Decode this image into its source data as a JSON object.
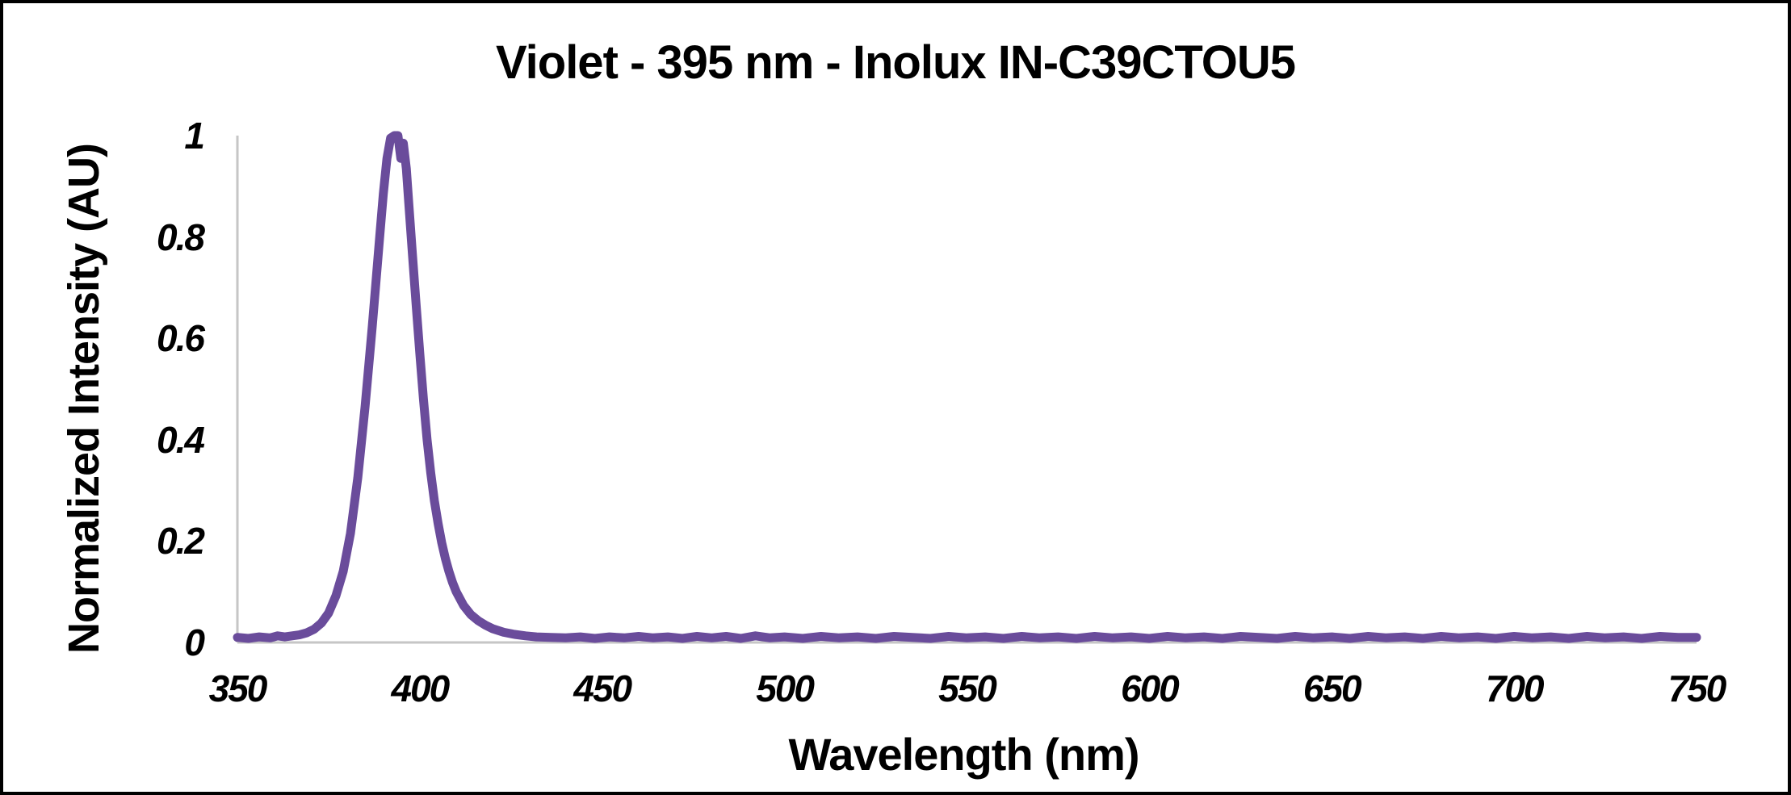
{
  "chart_data": {
    "type": "line",
    "title": "Violet - 395 nm - Inolux IN-C39CTOU5",
    "xlabel": "Wavelength (nm)",
    "ylabel": "Normalized Intensity (AU)",
    "xlim": [
      350,
      750
    ],
    "ylim": [
      0,
      1
    ],
    "x_tick_values": [
      350,
      400,
      450,
      500,
      550,
      600,
      650,
      700,
      750
    ],
    "x_tick_labels": [
      "350",
      "400",
      "450",
      "500",
      "550",
      "600",
      "650",
      "700",
      "750"
    ],
    "y_tick_values": [
      0,
      0.2,
      0.4,
      0.6,
      0.8,
      1
    ],
    "y_tick_labels": [
      "0",
      "0.2",
      "0.4",
      "0.6",
      "0.8",
      "1"
    ],
    "grid": false,
    "legend_position": "none",
    "line_color": "#6A4C9B",
    "axis_color": "#C6C6C6",
    "background_color": "#FFFFFF",
    "frame_color": "#000000",
    "series": [
      {
        "name": "Inolux IN-C39CTOU5",
        "points": [
          [
            350,
            0.01
          ],
          [
            353,
            0.008
          ],
          [
            356,
            0.011
          ],
          [
            359,
            0.009
          ],
          [
            361,
            0.013
          ],
          [
            363,
            0.011
          ],
          [
            365,
            0.013
          ],
          [
            367,
            0.015
          ],
          [
            369,
            0.019
          ],
          [
            371,
            0.026
          ],
          [
            373,
            0.038
          ],
          [
            375,
            0.058
          ],
          [
            377,
            0.092
          ],
          [
            379,
            0.14
          ],
          [
            381,
            0.215
          ],
          [
            383,
            0.325
          ],
          [
            385,
            0.465
          ],
          [
            387,
            0.625
          ],
          [
            389,
            0.8
          ],
          [
            390,
            0.885
          ],
          [
            391,
            0.955
          ],
          [
            392,
            0.995
          ],
          [
            393,
            1.0
          ],
          [
            394,
            1.0
          ],
          [
            394.8,
            0.955
          ],
          [
            395.5,
            0.985
          ],
          [
            396.3,
            0.935
          ],
          [
            397,
            0.865
          ],
          [
            398,
            0.765
          ],
          [
            399,
            0.665
          ],
          [
            400,
            0.57
          ],
          [
            401,
            0.48
          ],
          [
            402,
            0.4
          ],
          [
            403,
            0.335
          ],
          [
            404,
            0.28
          ],
          [
            405,
            0.235
          ],
          [
            406,
            0.197
          ],
          [
            407,
            0.166
          ],
          [
            408,
            0.14
          ],
          [
            409,
            0.118
          ],
          [
            410,
            0.1
          ],
          [
            412,
            0.073
          ],
          [
            414,
            0.055
          ],
          [
            416,
            0.043
          ],
          [
            418,
            0.034
          ],
          [
            420,
            0.027
          ],
          [
            423,
            0.02
          ],
          [
            426,
            0.016
          ],
          [
            429,
            0.013
          ],
          [
            432,
            0.011
          ],
          [
            436,
            0.01
          ],
          [
            440,
            0.009
          ],
          [
            444,
            0.011
          ],
          [
            448,
            0.008
          ],
          [
            452,
            0.011
          ],
          [
            456,
            0.009
          ],
          [
            460,
            0.012
          ],
          [
            464,
            0.009
          ],
          [
            468,
            0.011
          ],
          [
            472,
            0.008
          ],
          [
            476,
            0.012
          ],
          [
            480,
            0.009
          ],
          [
            484,
            0.012
          ],
          [
            488,
            0.008
          ],
          [
            492,
            0.013
          ],
          [
            496,
            0.009
          ],
          [
            500,
            0.011
          ],
          [
            505,
            0.008
          ],
          [
            510,
            0.012
          ],
          [
            515,
            0.009
          ],
          [
            520,
            0.011
          ],
          [
            525,
            0.008
          ],
          [
            530,
            0.012
          ],
          [
            535,
            0.01
          ],
          [
            540,
            0.008
          ],
          [
            545,
            0.012
          ],
          [
            550,
            0.009
          ],
          [
            555,
            0.011
          ],
          [
            560,
            0.008
          ],
          [
            565,
            0.012
          ],
          [
            570,
            0.009
          ],
          [
            575,
            0.011
          ],
          [
            580,
            0.008
          ],
          [
            585,
            0.012
          ],
          [
            590,
            0.009
          ],
          [
            595,
            0.011
          ],
          [
            600,
            0.008
          ],
          [
            605,
            0.012
          ],
          [
            610,
            0.009
          ],
          [
            615,
            0.011
          ],
          [
            620,
            0.008
          ],
          [
            625,
            0.012
          ],
          [
            630,
            0.01
          ],
          [
            635,
            0.008
          ],
          [
            640,
            0.012
          ],
          [
            645,
            0.009
          ],
          [
            650,
            0.011
          ],
          [
            655,
            0.008
          ],
          [
            660,
            0.012
          ],
          [
            665,
            0.009
          ],
          [
            670,
            0.011
          ],
          [
            675,
            0.008
          ],
          [
            680,
            0.012
          ],
          [
            685,
            0.009
          ],
          [
            690,
            0.011
          ],
          [
            695,
            0.008
          ],
          [
            700,
            0.012
          ],
          [
            705,
            0.009
          ],
          [
            710,
            0.011
          ],
          [
            715,
            0.008
          ],
          [
            720,
            0.012
          ],
          [
            725,
            0.009
          ],
          [
            730,
            0.011
          ],
          [
            735,
            0.008
          ],
          [
            740,
            0.012
          ],
          [
            745,
            0.01
          ],
          [
            750,
            0.01
          ]
        ]
      }
    ]
  }
}
